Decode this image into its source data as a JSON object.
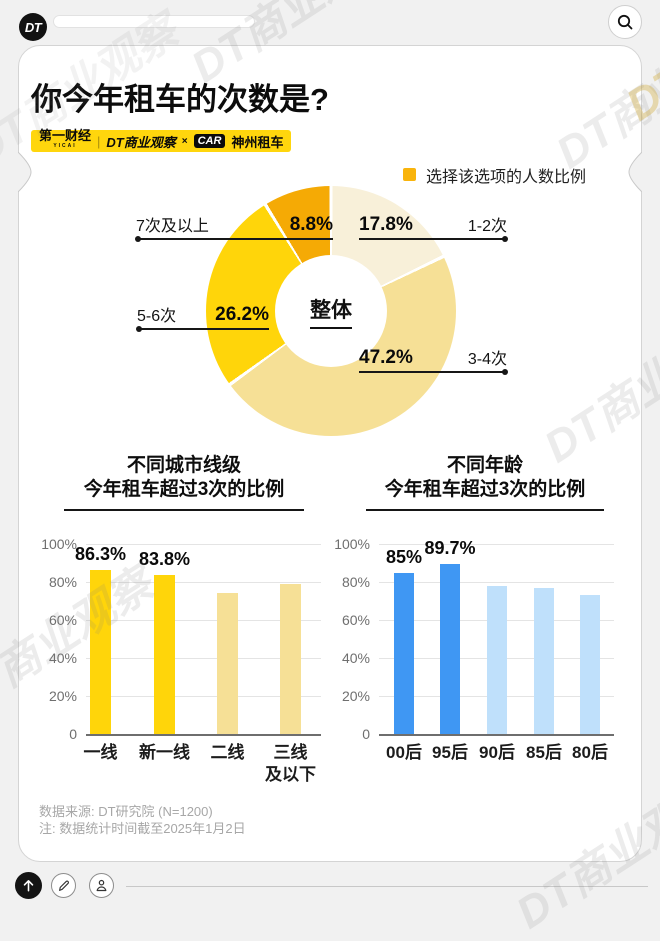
{
  "header": {
    "logo_text": "DT"
  },
  "poster": {
    "title": "你今年租车的次数是?",
    "badge": {
      "yicai": "第一财经",
      "yicai_sub": "YICAI",
      "divider": "|",
      "dt": "DT商业观察",
      "cross": "×",
      "car": "CAR",
      "shenzhou": "神州租车"
    },
    "legend": {
      "label": "选择该选项的人数比例",
      "color": "#f9b40c"
    },
    "footnotes": [
      "数据来源: DT研究院 (N=1200)",
      "注: 数据统计时间截至2025年1月2日"
    ]
  },
  "chart_data": [
    {
      "type": "pie",
      "title": "整体",
      "center_label": "整体",
      "legend": "选择该选项的人数比例",
      "direction": "clockwise",
      "start_angle": "12-oclock",
      "slices": [
        {
          "label": "1-2次",
          "value": 17.8,
          "color": "#f8f0d9"
        },
        {
          "label": "3-4次",
          "value": 47.2,
          "color": "#f6e096"
        },
        {
          "label": "5-6次",
          "value": 26.2,
          "color": "#ffd50a"
        },
        {
          "label": "7次及以上",
          "value": 8.8,
          "color": "#f5aa05"
        }
      ],
      "callouts": [
        {
          "category": "7次及以上",
          "pct": "8.8%",
          "side": "left"
        },
        {
          "category": "1-2次",
          "pct": "17.8%",
          "side": "right"
        },
        {
          "category": "5-6次",
          "pct": "26.2%",
          "side": "left"
        },
        {
          "category": "3-4次",
          "pct": "47.2%",
          "side": "right"
        }
      ]
    },
    {
      "type": "bar",
      "title": [
        "不同城市线级",
        "今年租车超过3次的比例"
      ],
      "categories": [
        "一线",
        "新一线",
        "二线",
        "三线\n及以下"
      ],
      "values": [
        86.3,
        83.8,
        74,
        79
      ],
      "value_labels": [
        "86.3%",
        "83.8%",
        "",
        ""
      ],
      "colors": [
        "#ffd50a",
        "#ffd50a",
        "#f6e096",
        "#f6e096"
      ],
      "ylim": [
        0,
        100
      ],
      "yticks": [
        "100%",
        "80%",
        "60%",
        "40%",
        "20%",
        "0"
      ],
      "grid": true
    },
    {
      "type": "bar",
      "title": [
        "不同年龄",
        "今年租车超过3次的比例"
      ],
      "categories": [
        "00后",
        "95后",
        "90后",
        "85后",
        "80后"
      ],
      "values": [
        85,
        89.7,
        78,
        77,
        73
      ],
      "value_labels": [
        "85%",
        "89.7%",
        "",
        "",
        ""
      ],
      "colors": [
        "#3f97f3",
        "#3f97f3",
        "#bfe0fb",
        "#bfe0fb",
        "#bfe0fb"
      ],
      "ylim": [
        0,
        100
      ],
      "yticks": [
        "100%",
        "80%",
        "60%",
        "40%",
        "20%",
        "0"
      ],
      "grid": true
    }
  ],
  "watermark": "DT商业观察"
}
